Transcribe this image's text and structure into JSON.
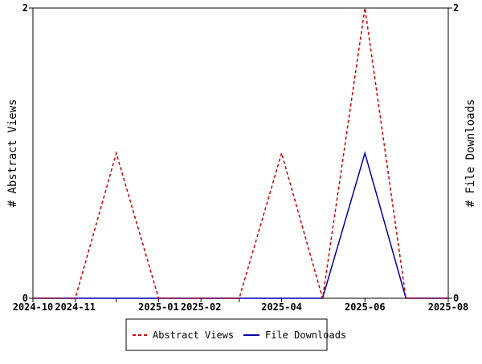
{
  "chart_data": {
    "type": "line",
    "x": [
      "2024-10-01",
      "2024-11-01",
      "2024-12-01",
      "2025-01-01",
      "2025-02-01",
      "2025-03-01",
      "2025-04-01",
      "2025-05-01",
      "2025-06-01",
      "2025-07-01",
      "2025-08-01"
    ],
    "series": [
      {
        "name": "Abstract Views",
        "values": [
          0,
          0,
          1,
          0,
          0,
          0,
          1,
          0,
          2,
          0,
          0
        ],
        "color": "#cc0000",
        "style": "dashed",
        "axis": "left"
      },
      {
        "name": "File Downloads",
        "values": [
          0,
          0,
          0,
          0,
          0,
          0,
          0,
          0,
          1,
          0,
          0
        ],
        "color": "#0000aa",
        "style": "solid",
        "axis": "right"
      }
    ],
    "xticks": [
      {
        "date": "2024-10-01",
        "label": "2024-10"
      },
      {
        "date": "2024-11-01",
        "label": "2024-11"
      },
      {
        "date": "2024-12-01",
        "label": ""
      },
      {
        "date": "2025-01-01",
        "label": "2025-01"
      },
      {
        "date": "2025-02-01",
        "label": "2025-02"
      },
      {
        "date": "2025-03-01",
        "label": ""
      },
      {
        "date": "2025-04-01",
        "label": "2025-04"
      },
      {
        "date": "2025-06-01",
        "label": "2025-06"
      },
      {
        "date": "2025-08-01",
        "label": "2025-08"
      }
    ],
    "xlim": [
      "2024-10-01",
      "2025-08-01"
    ],
    "ylabel": "# Abstract Views",
    "y2label": "# File Downloads",
    "ylim": [
      0,
      2
    ],
    "y2lim": [
      0,
      2
    ],
    "yticks": [
      "0",
      "2"
    ],
    "y2ticks": [
      "0",
      "2"
    ],
    "legend": {
      "placement": "bottom-center",
      "labels": [
        "Abstract Views",
        "File Downloads"
      ]
    },
    "grid": false
  }
}
